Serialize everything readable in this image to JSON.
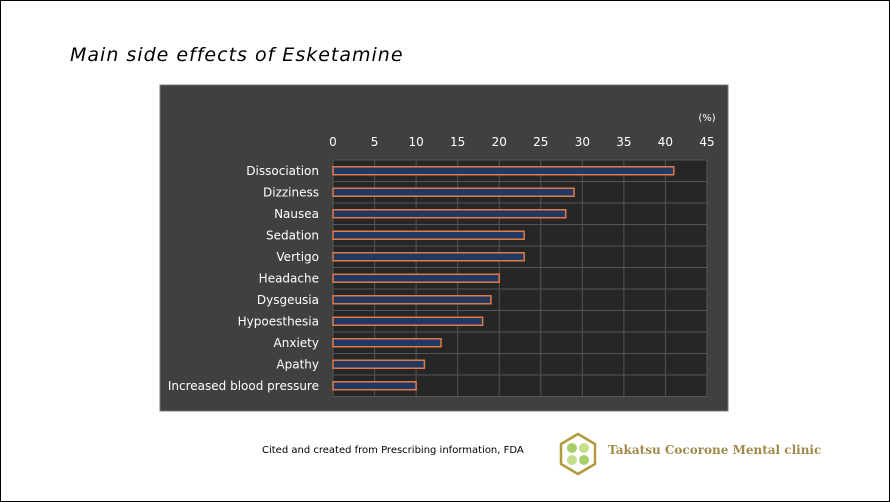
{
  "title": "Main side effects of  Esketamine",
  "chart_data": {
    "type": "bar",
    "orientation": "horizontal",
    "unit_label": "(%)",
    "categories": [
      "Dissociation",
      "Dizziness",
      "Nausea",
      "Sedation",
      "Vertigo",
      "Headache",
      "Dysgeusia",
      "Hypoesthesia",
      "Anxiety",
      "Apathy",
      "Increased blood pressure"
    ],
    "values": [
      41,
      29,
      28,
      23,
      23,
      20,
      19,
      18,
      13,
      11,
      10
    ],
    "xlim": [
      0,
      45
    ],
    "xticks": [
      0,
      5,
      10,
      15,
      20,
      25,
      30,
      35,
      40,
      45
    ],
    "grid": true,
    "colors": {
      "background": "#404040",
      "plot": "#262626",
      "bar_fill": "#1f3864",
      "bar_border": "#e07b45",
      "text": "#ffffff"
    }
  },
  "footer": {
    "citation": "Cited and created from Prescribing information, FDA",
    "clinic_name": "Takatsu Cocorone Mental clinic"
  }
}
